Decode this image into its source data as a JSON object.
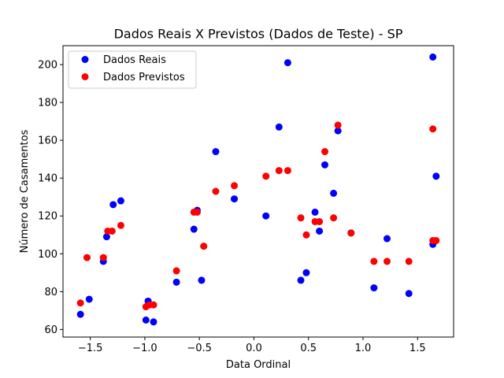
{
  "chart_data": {
    "type": "scatter",
    "title": "Dados Reais X Previstos (Dados de Teste) - SP",
    "xlabel": "Data Ordinal",
    "ylabel": "Número de Casamentos",
    "xlim": [
      -1.75,
      1.83
    ],
    "ylim": [
      56,
      210
    ],
    "xticks": [
      -1.5,
      -1.0,
      -0.5,
      0.0,
      0.5,
      1.0,
      1.5
    ],
    "xtick_labels": [
      "−1.5",
      "−1.0",
      "−0.5",
      "0.0",
      "0.5",
      "1.0",
      "1.5"
    ],
    "yticks": [
      60,
      80,
      100,
      120,
      140,
      160,
      180,
      200
    ],
    "ytick_labels": [
      "60",
      "80",
      "100",
      "120",
      "140",
      "160",
      "180",
      "200"
    ],
    "grid": false,
    "legend_position": "upper-left",
    "series": [
      {
        "name": "Dados Reais",
        "color": "#0000ff",
        "points": [
          [
            -1.59,
            68
          ],
          [
            -1.51,
            76
          ],
          [
            -1.38,
            96
          ],
          [
            -1.35,
            109
          ],
          [
            -1.29,
            126
          ],
          [
            -1.22,
            128
          ],
          [
            -0.99,
            65
          ],
          [
            -0.97,
            75
          ],
          [
            -0.92,
            64
          ],
          [
            -0.71,
            85
          ],
          [
            -0.55,
            113
          ],
          [
            -0.52,
            123
          ],
          [
            -0.48,
            86
          ],
          [
            -0.35,
            154
          ],
          [
            -0.18,
            129
          ],
          [
            0.11,
            120
          ],
          [
            0.23,
            167
          ],
          [
            0.31,
            201
          ],
          [
            0.43,
            86
          ],
          [
            0.48,
            90
          ],
          [
            0.56,
            122
          ],
          [
            0.6,
            112
          ],
          [
            0.65,
            147
          ],
          [
            0.73,
            132
          ],
          [
            0.77,
            165
          ],
          [
            0.89,
            111
          ],
          [
            1.1,
            82
          ],
          [
            1.22,
            108
          ],
          [
            1.42,
            79
          ],
          [
            1.64,
            204
          ],
          [
            1.64,
            105
          ],
          [
            1.67,
            141
          ]
        ]
      },
      {
        "name": "Dados Previstos",
        "color": "#ff0000",
        "points": [
          [
            -1.59,
            74
          ],
          [
            -1.53,
            98
          ],
          [
            -1.38,
            98
          ],
          [
            -1.34,
            112
          ],
          [
            -1.3,
            112
          ],
          [
            -1.22,
            115
          ],
          [
            -0.99,
            72
          ],
          [
            -0.96,
            73
          ],
          [
            -0.92,
            73
          ],
          [
            -0.71,
            91
          ],
          [
            -0.55,
            122
          ],
          [
            -0.52,
            122
          ],
          [
            -0.46,
            104
          ],
          [
            -0.35,
            133
          ],
          [
            -0.18,
            136
          ],
          [
            0.11,
            141
          ],
          [
            0.23,
            144
          ],
          [
            0.31,
            144
          ],
          [
            0.43,
            119
          ],
          [
            0.48,
            110
          ],
          [
            0.56,
            117
          ],
          [
            0.6,
            117
          ],
          [
            0.65,
            154
          ],
          [
            0.73,
            119
          ],
          [
            0.77,
            168
          ],
          [
            0.89,
            111
          ],
          [
            1.1,
            96
          ],
          [
            1.22,
            96
          ],
          [
            1.42,
            96
          ],
          [
            1.64,
            166
          ],
          [
            1.64,
            107
          ],
          [
            1.67,
            107
          ]
        ]
      }
    ]
  }
}
